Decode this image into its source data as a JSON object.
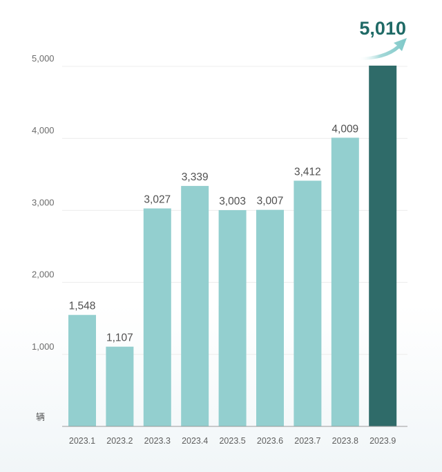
{
  "chart_data": {
    "type": "bar",
    "title": "",
    "unit_label": "辆",
    "categories": [
      "2023.1",
      "2023.2",
      "2023.3",
      "2023.4",
      "2023.5",
      "2023.6",
      "2023.7",
      "2023.8",
      "2023.9"
    ],
    "values": [
      1548,
      1107,
      3027,
      3339,
      3003,
      3007,
      3412,
      4009,
      5010
    ],
    "value_labels": [
      "1,548",
      "1,107",
      "3,027",
      "3,339",
      "3,003",
      "3,007",
      "3,412",
      "4,009",
      "5,010"
    ],
    "y_ticks": [
      1000,
      2000,
      3000,
      4000,
      5000
    ],
    "y_tick_labels": [
      "1,000",
      "2,000",
      "3,000",
      "4,000",
      "5,000"
    ],
    "ylim": [
      0,
      5000
    ],
    "grid": true,
    "highlight_index": 8,
    "colors": {
      "bar": "#93cfcf",
      "highlight_bar": "#2f6b69",
      "highlight_text": "#1f6a66",
      "arrow": "#7ec8c8",
      "grid": "#ececec",
      "axis": "#9a9a9a"
    }
  }
}
